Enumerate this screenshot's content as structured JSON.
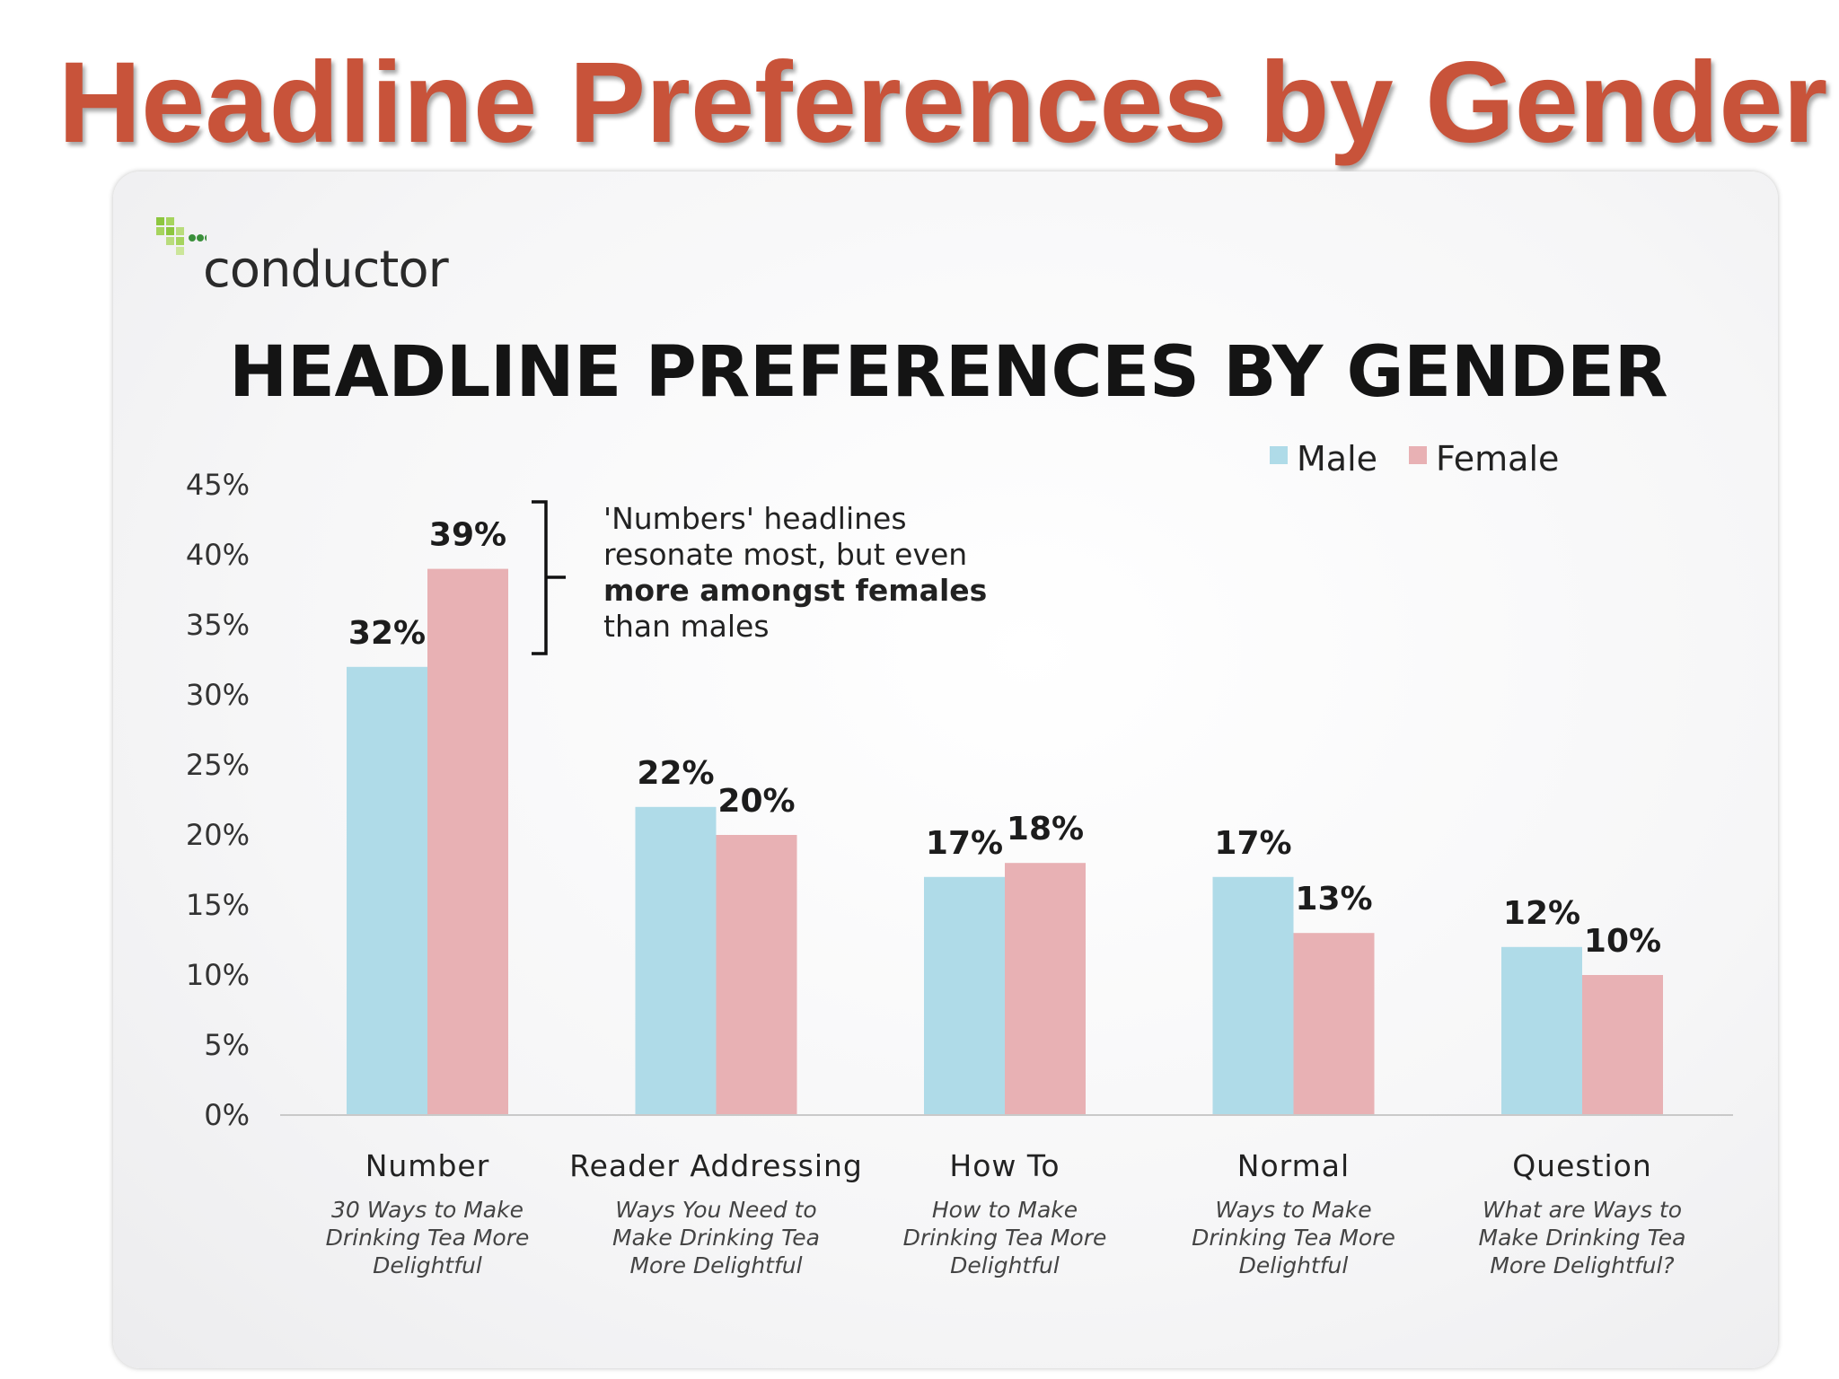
{
  "slide": {
    "title": "Headline Preferences by Gender",
    "title_color": "#c8533a"
  },
  "brand": {
    "name": "conductor",
    "logo_colors": [
      "#8dc63f",
      "#3a8f3a"
    ]
  },
  "annotation": {
    "part1": "'Numbers' headlines resonate most, but even ",
    "bold1": "more amongst females",
    "part2": " than males"
  },
  "chart_data": {
    "type": "bar",
    "title": "HEADLINE PREFERENCES BY GENDER",
    "xlabel": "",
    "ylabel": "",
    "ylim": [
      0,
      45
    ],
    "yticks": [
      "0%",
      "5%",
      "10%",
      "15%",
      "20%",
      "25%",
      "30%",
      "35%",
      "40%",
      "45%"
    ],
    "grid": false,
    "legend": "top-right",
    "categories": [
      "Number",
      "Reader Addressing",
      "How To",
      "Normal",
      "Question"
    ],
    "category_examples": [
      [
        "30 Ways to Make",
        "Drinking Tea More",
        "Delightful"
      ],
      [
        "Ways You Need to",
        "Make Drinking Tea",
        "More Delightful"
      ],
      [
        "How to Make",
        "Drinking Tea More",
        "Delightful"
      ],
      [
        "Ways to Make",
        "Drinking Tea More",
        "Delightful"
      ],
      [
        "What are Ways to",
        "Make Drinking Tea",
        "More Delightful?"
      ]
    ],
    "series": [
      {
        "name": "Male",
        "color": "#afdbe8",
        "values": [
          32,
          22,
          17,
          17,
          12
        ],
        "labels": [
          "32%",
          "22%",
          "17%",
          "17%",
          "12%"
        ]
      },
      {
        "name": "Female",
        "color": "#e8b1b4",
        "values": [
          39,
          20,
          18,
          13,
          10
        ],
        "labels": [
          "39%",
          "20%",
          "18%",
          "13%",
          "10%"
        ]
      }
    ]
  }
}
